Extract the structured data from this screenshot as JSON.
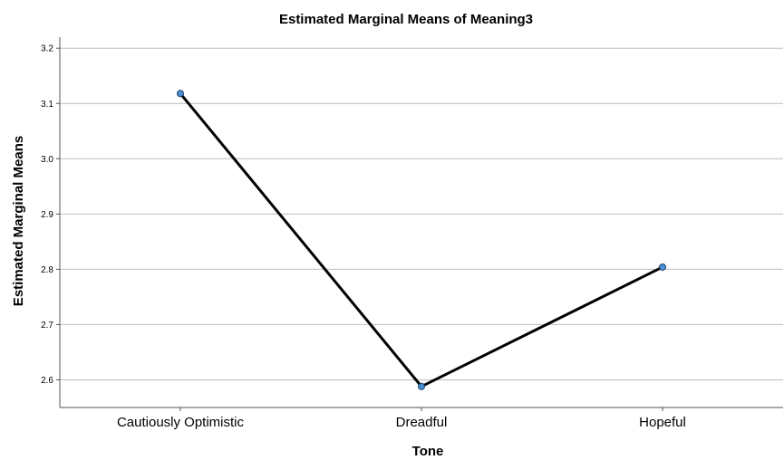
{
  "chart_data": {
    "type": "line",
    "title": "Estimated Marginal Means of Meaning3",
    "xlabel": "Tone",
    "ylabel": "Estimated Marginal Means",
    "categories": [
      "Cautiously Optimistic",
      "Dreadful",
      "Hopeful"
    ],
    "series": [
      {
        "values": [
          3.118,
          2.588,
          2.804
        ]
      }
    ],
    "ylim": [
      2.55,
      3.22
    ],
    "yticks": [
      "2.6",
      "2.7",
      "2.8",
      "2.9",
      "3.0",
      "3.1",
      "3.2"
    ],
    "grid": "horizontal",
    "legend": "none",
    "colors": {
      "line": "#000000",
      "marker_fill": "#4a90d9",
      "marker_stroke": "#1f3f66",
      "grid": "#bdbdbd",
      "axis": "#555555"
    }
  }
}
